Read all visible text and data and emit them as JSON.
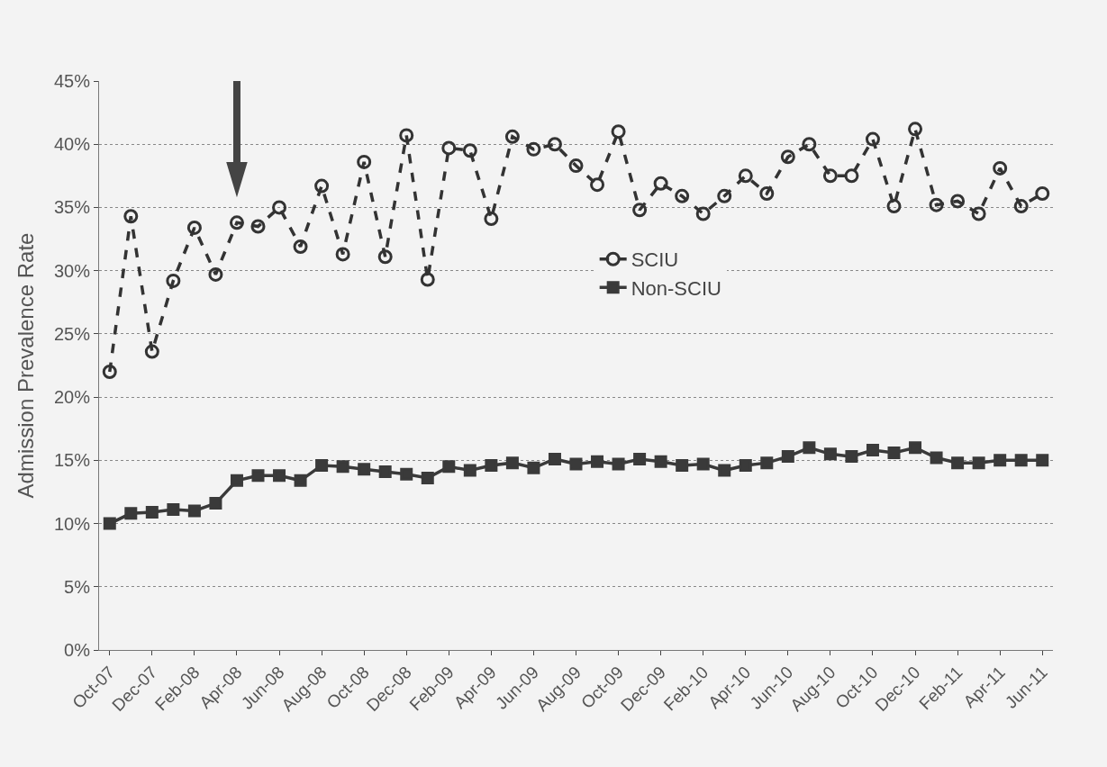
{
  "chart_data": {
    "type": "line",
    "ylabel": "Admission Prevalence Rate",
    "categories": [
      "Oct-07",
      null,
      "Dec-07",
      null,
      "Feb-08",
      null,
      "Apr-08",
      null,
      "Jun-08",
      null,
      "Aug-08",
      null,
      "Oct-08",
      null,
      "Dec-08",
      null,
      "Feb-09",
      null,
      "Apr-09",
      null,
      "Jun-09",
      null,
      "Aug-09",
      null,
      "Oct-09",
      null,
      "Dec-09",
      null,
      "Feb-10",
      null,
      "Apr-10",
      null,
      "Jun-10",
      null,
      "Aug-10",
      null,
      "Oct-10",
      null,
      "Dec-10",
      null,
      "Feb-11",
      null,
      "Apr-11",
      null,
      "Jun-11"
    ],
    "series": [
      {
        "name": "SCIU",
        "color": "#333333",
        "marker": "circle",
        "line_style": "dashed",
        "values": [
          22.0,
          34.3,
          23.6,
          29.2,
          33.4,
          29.7,
          33.8,
          33.5,
          35.0,
          31.9,
          36.7,
          31.3,
          38.6,
          31.1,
          40.7,
          29.3,
          39.7,
          39.5,
          34.1,
          40.6,
          39.6,
          40.0,
          38.3,
          36.8,
          41.0,
          34.8,
          36.9,
          35.9,
          34.5,
          35.9,
          37.5,
          36.1,
          39.0,
          40.0,
          37.5,
          37.5,
          40.4,
          35.1,
          41.2,
          35.2,
          35.5,
          34.5,
          38.1,
          35.1,
          36.1
        ]
      },
      {
        "name": "Non-SCIU",
        "color": "#3a3a3a",
        "marker": "square",
        "line_style": "solid",
        "values": [
          10.0,
          10.8,
          10.9,
          11.1,
          11.0,
          11.6,
          13.4,
          13.8,
          13.8,
          13.4,
          14.6,
          14.5,
          14.3,
          14.1,
          13.9,
          13.6,
          14.5,
          14.2,
          14.6,
          14.8,
          14.4,
          15.1,
          14.7,
          14.9,
          14.7,
          15.1,
          14.9,
          14.6,
          14.7,
          14.2,
          14.6,
          14.8,
          15.3,
          16.0,
          15.5,
          15.3,
          15.8,
          15.6,
          16.0,
          15.2,
          14.8,
          14.8,
          15.0,
          15.0,
          15.0
        ]
      }
    ],
    "ylim": [
      0,
      45
    ],
    "yticks": [
      {
        "value": 0,
        "label": "0%"
      },
      {
        "value": 5,
        "label": "5%"
      },
      {
        "value": 10,
        "label": "10%"
      },
      {
        "value": 15,
        "label": "15%"
      },
      {
        "value": 20,
        "label": "20%"
      },
      {
        "value": 25,
        "label": "25%"
      },
      {
        "value": 30,
        "label": "30%"
      },
      {
        "value": 35,
        "label": "35%"
      },
      {
        "value": 40,
        "label": "40%"
      },
      {
        "value": 45,
        "label": "45%"
      }
    ],
    "grid": "y",
    "legend": "center"
  }
}
